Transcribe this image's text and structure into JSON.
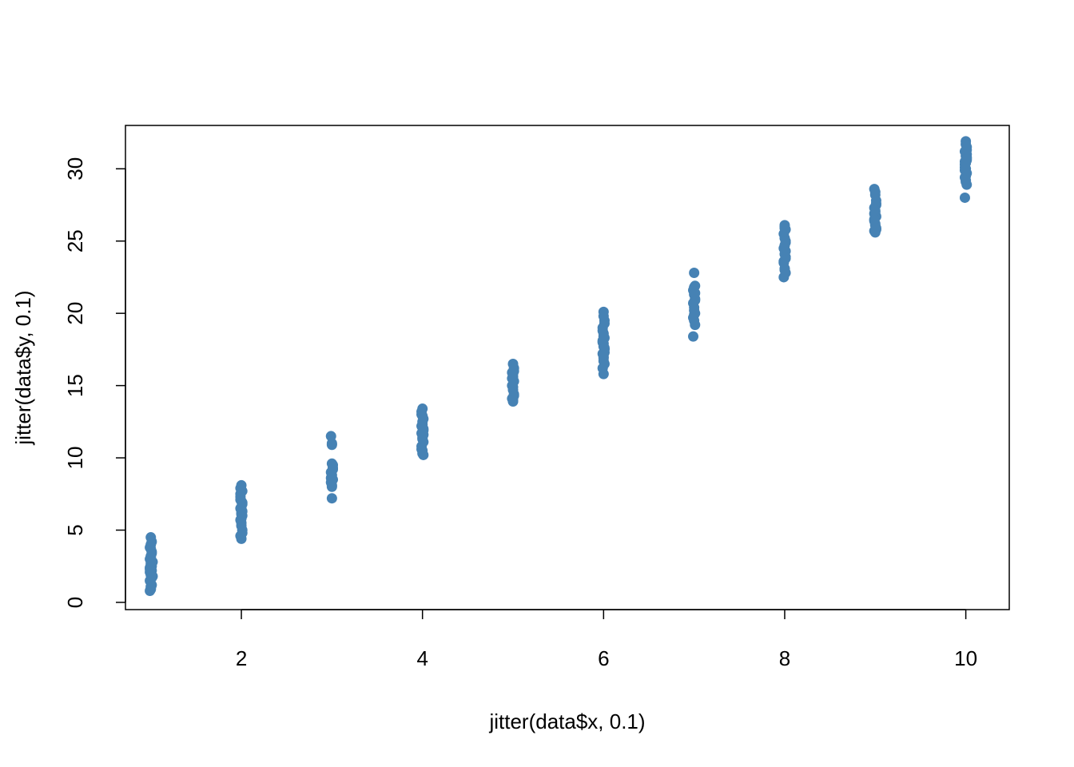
{
  "chart_data": {
    "type": "scatter",
    "title": "",
    "xlabel": "jitter(data$x, 0.1)",
    "ylabel": "jitter(data$y, 0.1)",
    "xlim": [
      0.72,
      10.48
    ],
    "ylim": [
      -0.5,
      33.0
    ],
    "xticks": [
      2,
      4,
      6,
      8,
      10
    ],
    "yticks": [
      0,
      5,
      10,
      15,
      20,
      25,
      30
    ],
    "grid": false,
    "legend": "none",
    "point_color": "#4682B4",
    "series": [
      {
        "x": [
          1.0,
          1.01,
          0.99,
          1.01,
          1.0,
          0.99,
          1.02,
          1.0,
          0.99,
          1.01,
          1.0,
          1.02,
          0.99,
          1.01,
          1.0,
          0.99,
          1.0,
          1.01,
          0.99,
          1.0,
          1.01,
          1.0,
          1.0,
          0.99,
          1.01,
          1.0,
          1.0,
          1.0,
          1.0,
          2.0,
          2.01,
          1.99,
          2.0,
          2.01,
          1.99,
          2.0,
          2.01,
          1.99,
          2.0,
          2.01,
          1.99,
          2.0,
          1.99,
          2.0,
          2.01,
          2.0,
          1.99,
          2.01,
          2.0,
          2.01,
          1.99,
          2.0,
          2.99,
          3.0,
          3.0,
          3.01,
          2.99,
          3.0,
          3.01,
          2.99,
          3.0,
          3.0,
          3.01,
          2.99,
          3.0,
          3.0,
          3.01,
          4.0,
          3.99,
          4.01,
          4.0,
          3.99,
          4.01,
          3.99,
          4.0,
          4.01,
          3.99,
          4.0,
          4.01,
          3.99,
          4.0,
          4.01,
          4.0,
          3.99,
          4.0,
          4.01,
          4.0,
          4.0,
          5.0,
          5.01,
          4.99,
          5.0,
          5.01,
          4.99,
          5.0,
          5.01,
          4.99,
          5.0,
          5.01,
          4.99,
          5.0,
          5.01,
          5.0,
          5.0,
          6.0,
          6.01,
          5.99,
          6.0,
          6.01,
          5.99,
          6.0,
          6.01,
          5.99,
          6.0,
          6.01,
          5.99,
          6.0,
          6.01,
          5.99,
          6.0,
          6.01,
          5.99,
          6.0,
          6.01,
          6.0,
          6.0,
          6.0,
          7.0,
          7.01,
          6.99,
          7.0,
          7.01,
          6.99,
          7.0,
          7.01,
          6.99,
          7.0,
          7.01,
          6.99,
          7.0,
          7.01,
          7.0,
          7.01,
          7.0,
          8.0,
          8.01,
          7.99,
          8.0,
          8.01,
          7.99,
          8.0,
          8.01,
          7.99,
          8.0,
          8.01,
          7.99,
          8.0,
          8.01,
          7.99,
          8.0,
          8.01,
          8.0,
          8.0,
          8.01,
          8.99,
          9.0,
          9.01,
          8.99,
          9.0,
          9.01,
          8.99,
          9.0,
          9.01,
          8.99,
          9.0,
          9.01,
          8.99,
          9.0,
          9.01,
          9.0,
          8.99,
          9.0,
          9.01,
          10.0,
          10.01,
          9.99,
          10.0,
          10.01,
          9.99,
          10.0,
          10.01,
          9.99,
          10.0,
          10.01,
          9.99,
          10.0,
          10.01,
          9.99,
          10.0,
          10.01,
          9.99,
          10.0,
          10.01,
          10.0,
          9.99,
          10.01
        ],
        "y": [
          4.5,
          4.2,
          3.8,
          3.5,
          3.2,
          3.0,
          2.8,
          2.6,
          2.4,
          2.2,
          2.0,
          1.8,
          1.5,
          1.2,
          1.0,
          0.8,
          3.7,
          2.5,
          2.1,
          1.9,
          3.4,
          2.9,
          4.0,
          2.3,
          1.7,
          3.1,
          2.7,
          1.1,
          0.9,
          8.1,
          7.7,
          7.3,
          7.0,
          6.8,
          6.5,
          6.2,
          6.0,
          5.7,
          5.3,
          5.0,
          4.6,
          4.4,
          7.5,
          6.6,
          6.9,
          5.5,
          7.1,
          6.3,
          5.8,
          4.8,
          7.9,
          6.1,
          11.5,
          11.0,
          9.6,
          9.3,
          9.0,
          8.8,
          8.5,
          8.3,
          8.1,
          7.2,
          9.5,
          8.6,
          8.0,
          10.9,
          9.2,
          13.4,
          13.0,
          12.7,
          12.5,
          12.2,
          12.0,
          11.7,
          11.4,
          11.1,
          10.8,
          10.5,
          10.2,
          13.2,
          12.3,
          11.9,
          11.3,
          10.6,
          12.9,
          11.6,
          10.3,
          12.1,
          16.5,
          16.2,
          15.9,
          15.6,
          15.3,
          15.0,
          14.7,
          14.4,
          14.1,
          13.9,
          16.0,
          15.5,
          14.9,
          14.3,
          15.8,
          14.0,
          20.1,
          19.5,
          19.0,
          18.6,
          18.3,
          18.0,
          17.7,
          17.5,
          17.2,
          16.9,
          16.5,
          16.2,
          15.8,
          19.3,
          18.8,
          17.9,
          17.3,
          18.1,
          16.7,
          17.6,
          19.8,
          18.4,
          17.0,
          22.8,
          21.9,
          21.6,
          21.3,
          21.0,
          20.7,
          20.4,
          20.0,
          19.7,
          19.5,
          19.2,
          18.4,
          21.8,
          20.9,
          20.2,
          21.4,
          19.9,
          26.1,
          25.8,
          25.5,
          25.2,
          24.9,
          24.5,
          24.1,
          23.8,
          23.5,
          23.1,
          22.8,
          22.5,
          25.9,
          24.3,
          23.6,
          26.0,
          25.0,
          23.0,
          24.7,
          23.9,
          28.6,
          28.2,
          27.6,
          27.3,
          27.0,
          26.7,
          26.4,
          26.1,
          25.8,
          25.7,
          28.4,
          27.5,
          26.9,
          26.2,
          25.9,
          27.1,
          26.5,
          25.6,
          27.8,
          31.9,
          31.5,
          31.2,
          30.9,
          30.6,
          30.3,
          30.0,
          29.7,
          29.4,
          29.1,
          28.9,
          28.0,
          31.7,
          30.8,
          30.1,
          29.5,
          31.0,
          30.5,
          29.2,
          31.3,
          30.4,
          29.9,
          30.7
        ]
      }
    ]
  }
}
